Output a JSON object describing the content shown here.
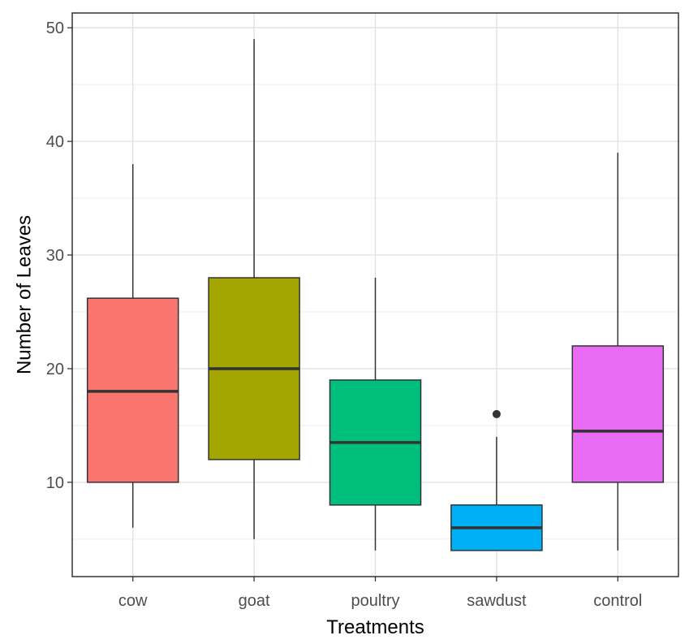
{
  "chart_data": {
    "type": "boxplot",
    "title": "",
    "xlabel": "Treatments",
    "ylabel": "Number of Leaves",
    "ylim": [
      1.7,
      51.3
    ],
    "yticks": [
      10,
      20,
      30,
      40,
      50
    ],
    "y_minor_ticks": [
      5,
      15,
      25,
      35,
      45
    ],
    "grid": true,
    "legend": "none",
    "categories": [
      "cow",
      "goat",
      "poultry",
      "sawdust",
      "control"
    ],
    "boxes": [
      {
        "category": "cow",
        "min": 6,
        "q1": 10,
        "median": 18,
        "q3": 26.2,
        "max": 38,
        "outliers": [],
        "color": "#F8766D"
      },
      {
        "category": "goat",
        "min": 5,
        "q1": 12,
        "median": 20,
        "q3": 28,
        "max": 49,
        "outliers": [],
        "color": "#A3A500"
      },
      {
        "category": "poultry",
        "min": 4,
        "q1": 8,
        "median": 13.5,
        "q3": 19,
        "max": 28,
        "outliers": [],
        "color": "#00BF7D"
      },
      {
        "category": "sawdust",
        "min": 4,
        "q1": 4,
        "median": 6,
        "q3": 8,
        "max": 14,
        "outliers": [
          16
        ],
        "color": "#00B0F6"
      },
      {
        "category": "control",
        "min": 4,
        "q1": 10,
        "median": 14.5,
        "q3": 22,
        "max": 39,
        "outliers": [],
        "color": "#E76BF3"
      }
    ]
  }
}
